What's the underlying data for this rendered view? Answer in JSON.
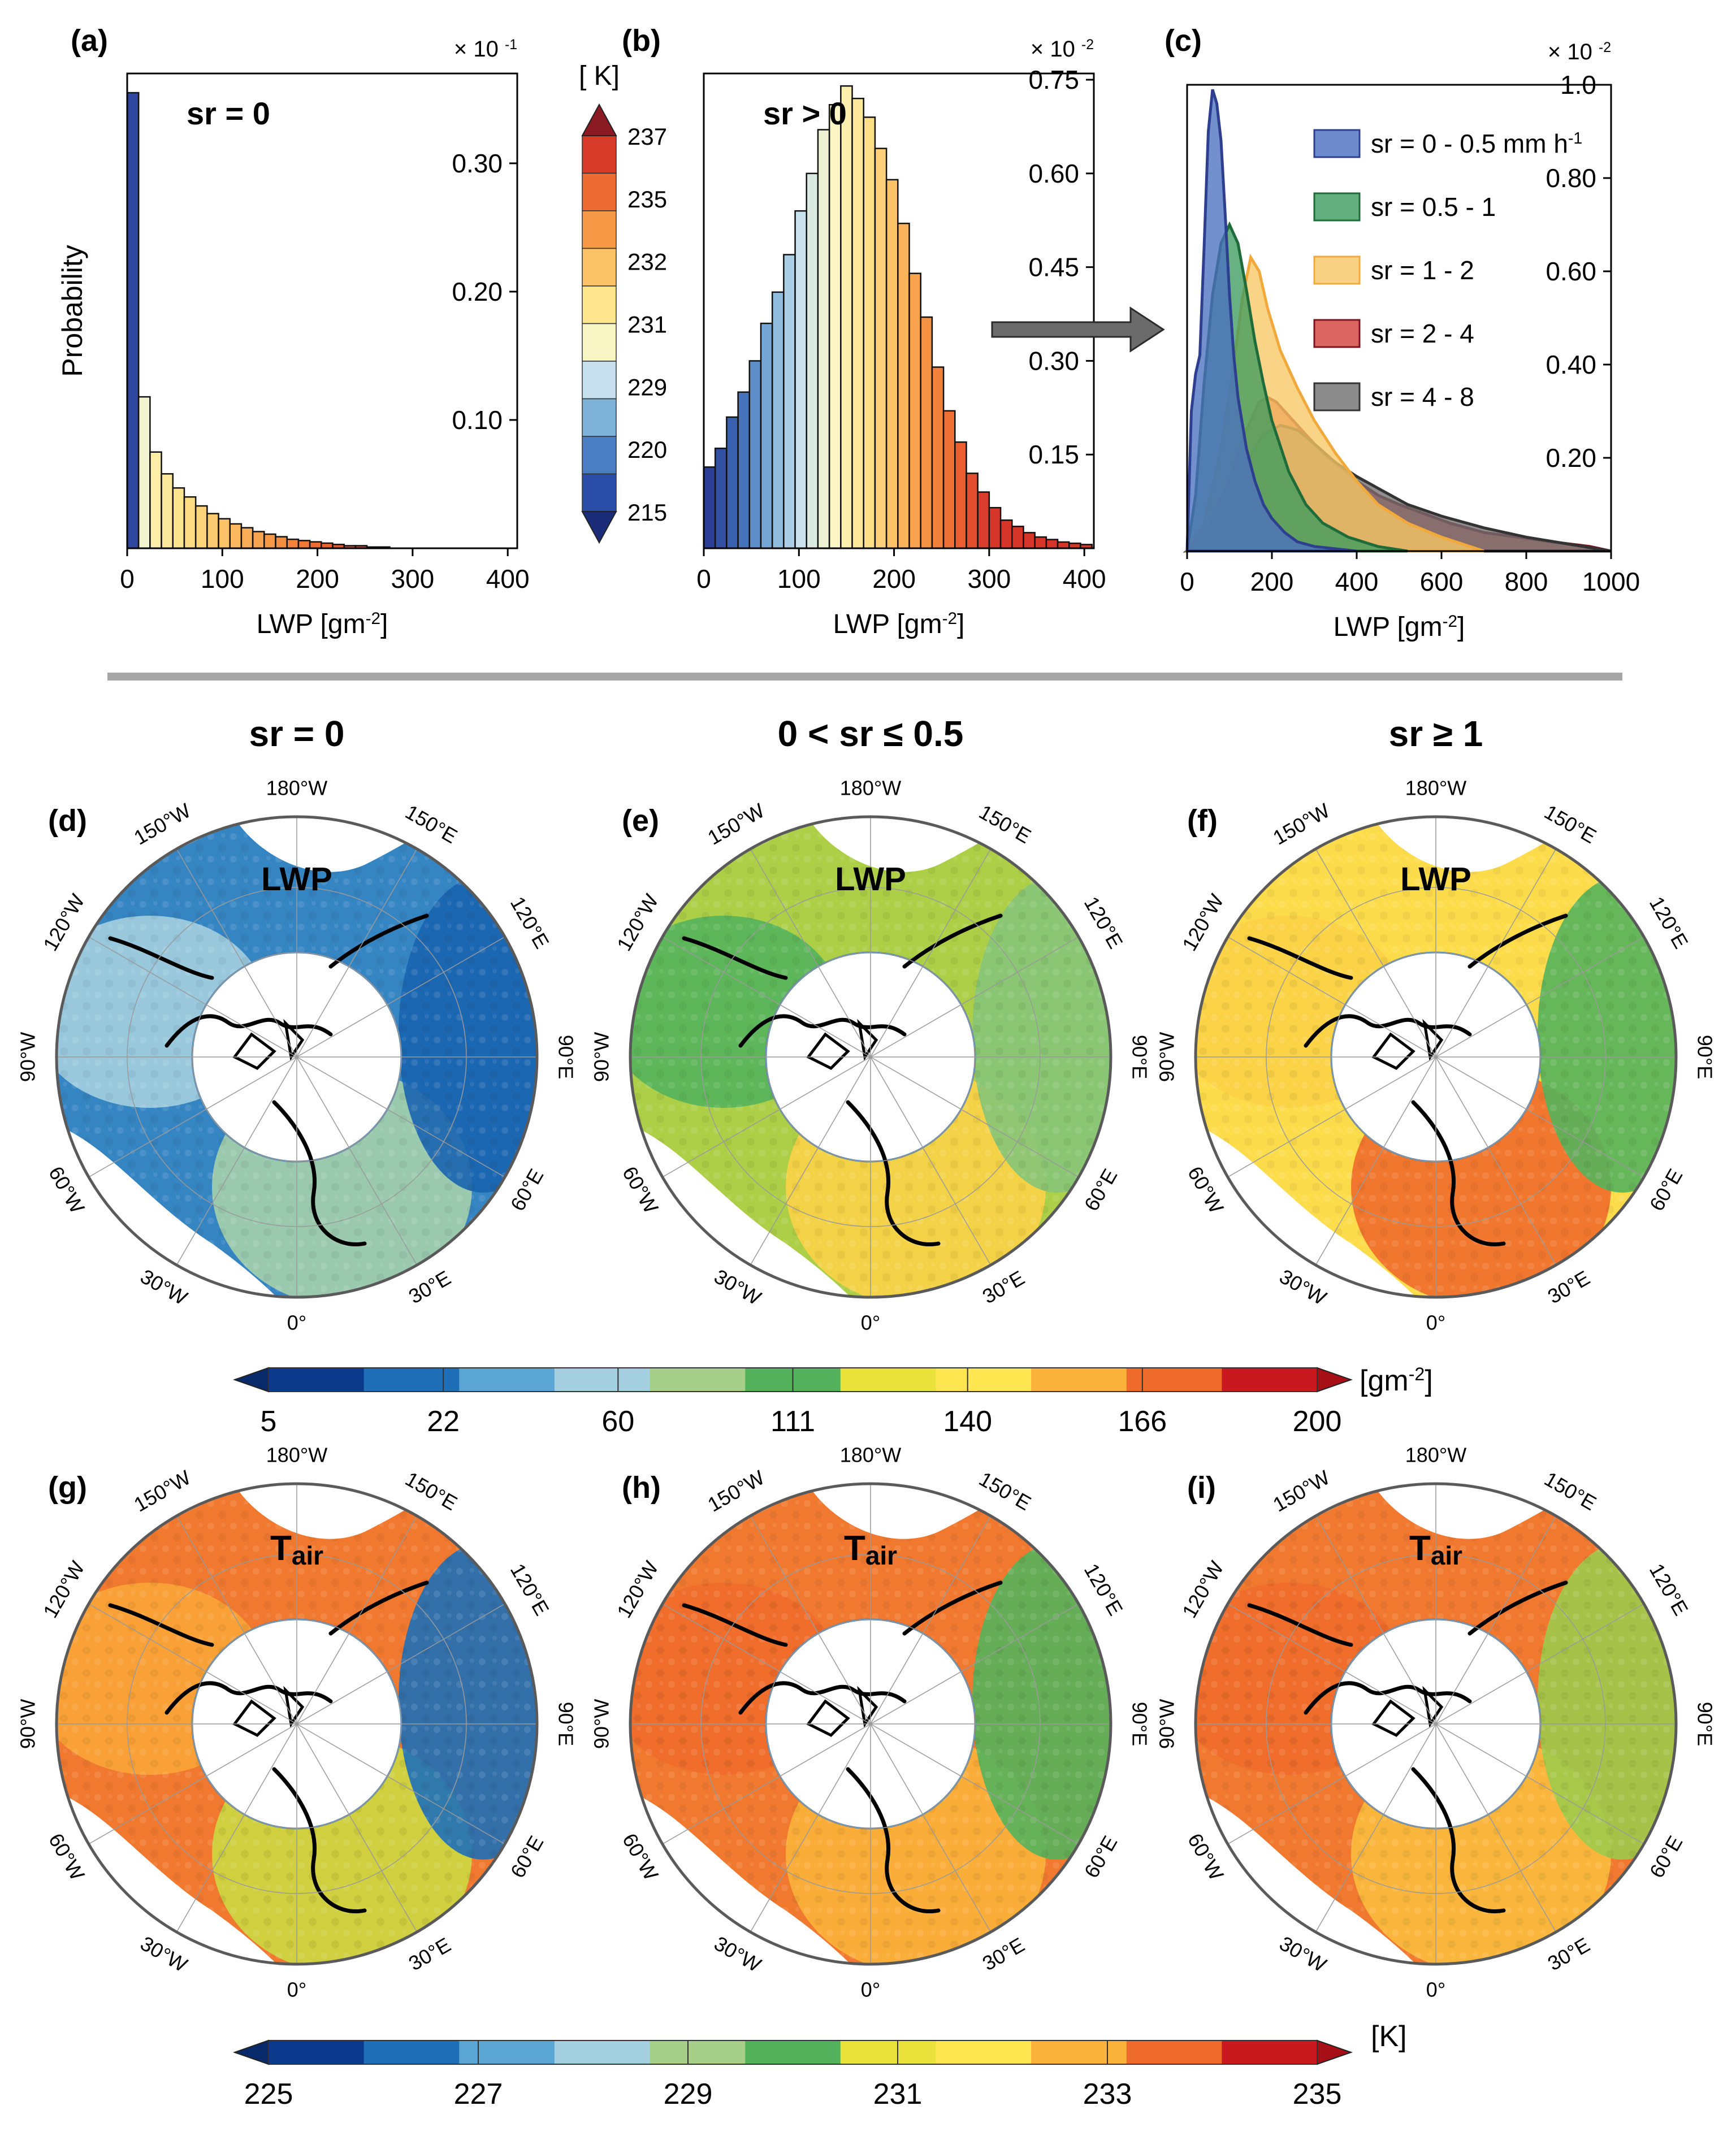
{
  "panel_labels": {
    "a": "(a)",
    "b": "(b)",
    "c": "(c)",
    "d": "(d)",
    "e": "(e)",
    "f": "(f)",
    "g": "(g)",
    "h": "(h)",
    "i": "(i)"
  },
  "chart_data": [
    {
      "type": "bar",
      "panel": "a",
      "title": "sr = 0",
      "xlabel": "LWP [gm",
      "xlabel_sup": "-2",
      "xlabel_end": "]",
      "ylabel": "Probability",
      "scale": "× 10",
      "scale_exp": "-1",
      "xlim": [
        0,
        410
      ],
      "ylim": [
        0,
        0.37
      ],
      "xticks": [
        0,
        100,
        200,
        300,
        400
      ],
      "yticks": [
        "0.10",
        "0.20",
        "0.30"
      ],
      "ytick_values": [
        0.1,
        0.2,
        0.3
      ],
      "bin_width": 12,
      "values": [
        0.355,
        0.118,
        0.075,
        0.058,
        0.047,
        0.04,
        0.033,
        0.027,
        0.023,
        0.019,
        0.016,
        0.013,
        0.011,
        0.009,
        0.007,
        0.006,
        0.005,
        0.004,
        0.003,
        0.002,
        0.002,
        0.001,
        0.001
      ]
    },
    {
      "type": "bar",
      "panel": "b",
      "title": "sr > 0",
      "xlabel": "LWP [gm",
      "xlabel_sup": "-2",
      "xlabel_end": "]",
      "scale": "× 10",
      "scale_exp": "-2",
      "xlim": [
        0,
        410
      ],
      "ylim": [
        0,
        0.76
      ],
      "xticks": [
        0,
        100,
        200,
        300,
        400
      ],
      "yticks": [
        "0.15",
        "0.30",
        "0.45",
        "0.60",
        "0.75"
      ],
      "ytick_values": [
        0.15,
        0.3,
        0.45,
        0.6,
        0.75
      ],
      "bin_width": 12,
      "values": [
        0.13,
        0.16,
        0.21,
        0.25,
        0.3,
        0.36,
        0.41,
        0.47,
        0.54,
        0.6,
        0.67,
        0.71,
        0.74,
        0.72,
        0.69,
        0.64,
        0.59,
        0.52,
        0.44,
        0.37,
        0.29,
        0.22,
        0.17,
        0.12,
        0.09,
        0.065,
        0.045,
        0.035,
        0.025,
        0.018,
        0.014,
        0.01,
        0.008,
        0.006
      ]
    },
    {
      "type": "area",
      "panel": "c",
      "xlabel": "LWP [gm",
      "xlabel_sup": "-2",
      "xlabel_end": "]",
      "scale": "× 10",
      "scale_exp": "-2",
      "xlim": [
        0,
        1000
      ],
      "ylim": [
        0,
        1.0
      ],
      "xticks": [
        0,
        200,
        400,
        600,
        800,
        1000
      ],
      "yticks": [
        "0.20",
        "0.40",
        "0.60",
        "0.80",
        "1.0"
      ],
      "ytick_values": [
        0.2,
        0.4,
        0.6,
        0.8,
        1.0
      ],
      "legend_position": "top-right",
      "series": [
        {
          "name": "sr = 0 - 0.5 mm h",
          "name_sup": "-1",
          "color": "#4a6fc0",
          "stroke": "#2e3f8f",
          "x": [
            0,
            10,
            20,
            30,
            40,
            50,
            60,
            70,
            80,
            90,
            100,
            110,
            120,
            140,
            160,
            180,
            200,
            230,
            260,
            300,
            350,
            400
          ],
          "y": [
            0,
            0.3,
            0.38,
            0.42,
            0.65,
            0.9,
            0.99,
            0.96,
            0.88,
            0.72,
            0.55,
            0.42,
            0.33,
            0.22,
            0.15,
            0.1,
            0.07,
            0.04,
            0.02,
            0.01,
            0.005,
            0
          ]
        },
        {
          "name": "sr = 0.5 - 1",
          "color": "#3d9b5f",
          "stroke": "#1f6b3a",
          "x": [
            0,
            20,
            40,
            60,
            80,
            100,
            120,
            140,
            160,
            180,
            200,
            240,
            280,
            320,
            380,
            450,
            520
          ],
          "y": [
            0,
            0.12,
            0.36,
            0.55,
            0.66,
            0.7,
            0.66,
            0.56,
            0.45,
            0.36,
            0.28,
            0.17,
            0.1,
            0.06,
            0.03,
            0.01,
            0
          ]
        },
        {
          "name": "sr = 1 - 2",
          "color": "#f8c864",
          "stroke": "#f2a93b",
          "x": [
            0,
            40,
            80,
            110,
            130,
            150,
            170,
            190,
            220,
            260,
            300,
            350,
            400,
            450,
            520,
            600,
            700
          ],
          "y": [
            0,
            0.06,
            0.22,
            0.4,
            0.54,
            0.63,
            0.6,
            0.52,
            0.43,
            0.35,
            0.28,
            0.21,
            0.15,
            0.1,
            0.06,
            0.03,
            0
          ]
        },
        {
          "name": "sr = 2 - 4",
          "color": "#d43f3a",
          "stroke": "#7a1520",
          "x": [
            0,
            50,
            100,
            140,
            170,
            190,
            210,
            240,
            280,
            320,
            360,
            400,
            450,
            500,
            560,
            620,
            700,
            780,
            860,
            950,
            1000
          ],
          "y": [
            0,
            0.05,
            0.15,
            0.26,
            0.32,
            0.33,
            0.32,
            0.29,
            0.25,
            0.21,
            0.18,
            0.15,
            0.12,
            0.1,
            0.08,
            0.06,
            0.04,
            0.03,
            0.02,
            0.01,
            0
          ]
        },
        {
          "name": "sr = 4 - 8",
          "color": "#6f6f6f",
          "stroke": "#333333",
          "x": [
            0,
            60,
            100,
            140,
            180,
            220,
            260,
            300,
            350,
            400,
            460,
            520,
            600,
            700,
            800,
            900,
            1000
          ],
          "y": [
            0,
            0.04,
            0.11,
            0.19,
            0.25,
            0.27,
            0.26,
            0.23,
            0.19,
            0.16,
            0.13,
            0.1,
            0.075,
            0.05,
            0.03,
            0.015,
            0
          ]
        }
      ]
    },
    {
      "type": "heatmap",
      "role": "colorbar",
      "panel": "a-b",
      "unit": "[ K]",
      "ticks": [
        "215",
        "220",
        "229",
        "231",
        "232",
        "235",
        "237"
      ],
      "colors": [
        "#2b4ea8",
        "#4a7dc2",
        "#7eb2d9",
        "#c8e0ed",
        "#f7f5c4",
        "#fde68e",
        "#fcc267",
        "#f79a47",
        "#ee6b34",
        "#d93b2a"
      ]
    },
    {
      "type": "heatmap",
      "role": "colorbar",
      "panel": "d-f",
      "unit": "[gm",
      "unit_sup": "-2",
      "unit_end": "]",
      "ticks": [
        "5",
        "22",
        "60",
        "111",
        "140",
        "166",
        "200"
      ],
      "colors": [
        "#0b3a8c",
        "#1e6fb8",
        "#5aa5d3",
        "#a4cfe0",
        "#a6d08a",
        "#55b25c",
        "#e8e23a",
        "#fde64f",
        "#fbb23a",
        "#ef6b2c",
        "#c9191e"
      ]
    },
    {
      "type": "heatmap",
      "role": "colorbar",
      "panel": "g-i",
      "unit": "[K]",
      "ticks": [
        "225",
        "227",
        "229",
        "231",
        "233",
        "235"
      ],
      "colors": [
        "#0b3a8c",
        "#1e6fb8",
        "#5aa5d3",
        "#a4cfe0",
        "#a6d08a",
        "#55b25c",
        "#e8e23a",
        "#fde64f",
        "#fbb23a",
        "#ef6b2c",
        "#c9191e"
      ]
    }
  ],
  "maps": {
    "column_titles": [
      "sr = 0",
      "0 < sr ≤ 0.5",
      "sr ≥ 1"
    ],
    "var_lwp": "LWP",
    "var_tair": "T",
    "var_tair_sub": "air",
    "lon_labels": {
      "top": "180°W",
      "tl": "150°W",
      "tr": "150°E",
      "l1": "120°W",
      "r1": "120°E",
      "l2": "90°W",
      "r2": "90°E",
      "l3": "60°W",
      "r3": "60°E",
      "bl": "30°W",
      "br": "30°E",
      "bottom": "0°"
    },
    "panels": [
      {
        "id": "d",
        "var": "lwp",
        "palette": "lwp-low"
      },
      {
        "id": "e",
        "var": "lwp",
        "palette": "lwp-mid"
      },
      {
        "id": "f",
        "var": "lwp",
        "palette": "lwp-high"
      },
      {
        "id": "g",
        "var": "tair",
        "palette": "t-low"
      },
      {
        "id": "h",
        "var": "tair",
        "palette": "t-mid"
      },
      {
        "id": "i",
        "var": "tair",
        "palette": "t-high"
      }
    ]
  }
}
